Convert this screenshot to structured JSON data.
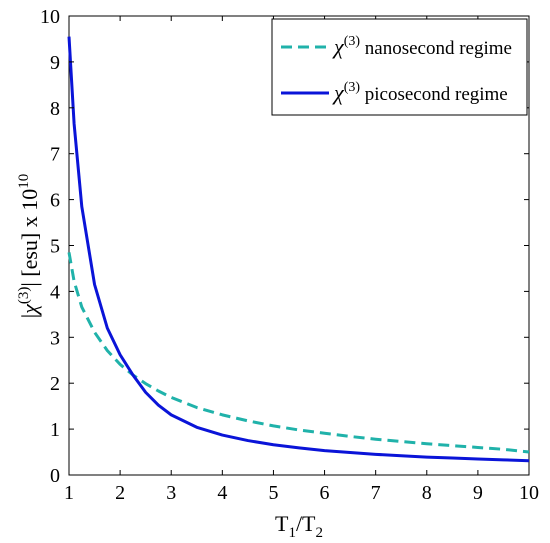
{
  "chart_data": {
    "type": "line",
    "xlabel": {
      "main": "T",
      "sub1": "1",
      "slash": "/T",
      "sub2": "2"
    },
    "ylabel": {
      "pre": "|",
      "chi": "χ",
      "sup": "(3)",
      "mid": "| [esu] x 10",
      "exp": "10"
    },
    "xlim": [
      1,
      10
    ],
    "ylim": [
      0,
      10
    ],
    "xticks": [
      "1",
      "2",
      "3",
      "4",
      "5",
      "6",
      "7",
      "8",
      "9",
      "10"
    ],
    "yticks": [
      "0",
      "1",
      "2",
      "3",
      "4",
      "5",
      "6",
      "7",
      "8",
      "9",
      "10"
    ],
    "legend_position": "top-right",
    "grid": false,
    "series": [
      {
        "symbol": "χ",
        "sup": "(3)",
        "label": " nanosecond regime",
        "color": "#20b2aa",
        "style": "dashed",
        "x": [
          1.0,
          1.1,
          1.25,
          1.5,
          1.75,
          2.0,
          2.25,
          2.5,
          2.75,
          3.0,
          3.5,
          4.0,
          4.5,
          5.0,
          5.5,
          6.0,
          6.5,
          7.0,
          7.5,
          8.0,
          8.5,
          9.0,
          9.5,
          10.0
        ],
        "y": [
          4.85,
          4.22,
          3.66,
          3.11,
          2.71,
          2.41,
          2.18,
          1.99,
          1.83,
          1.69,
          1.47,
          1.31,
          1.18,
          1.07,
          0.98,
          0.91,
          0.84,
          0.78,
          0.73,
          0.68,
          0.64,
          0.6,
          0.56,
          0.5
        ]
      },
      {
        "symbol": "χ",
        "sup": "(3)",
        "label": " picosecond regime",
        "color": "#0a14d8",
        "style": "solid",
        "x": [
          1.0,
          1.1,
          1.25,
          1.5,
          1.75,
          2.0,
          2.25,
          2.5,
          2.75,
          3.0,
          3.5,
          4.0,
          4.5,
          5.0,
          5.5,
          6.0,
          6.5,
          7.0,
          7.5,
          8.0,
          8.5,
          9.0,
          9.5,
          10.0
        ],
        "y": [
          9.55,
          7.65,
          5.85,
          4.15,
          3.2,
          2.62,
          2.18,
          1.8,
          1.52,
          1.31,
          1.04,
          0.87,
          0.75,
          0.66,
          0.59,
          0.53,
          0.49,
          0.45,
          0.42,
          0.39,
          0.37,
          0.35,
          0.33,
          0.31
        ]
      }
    ]
  }
}
